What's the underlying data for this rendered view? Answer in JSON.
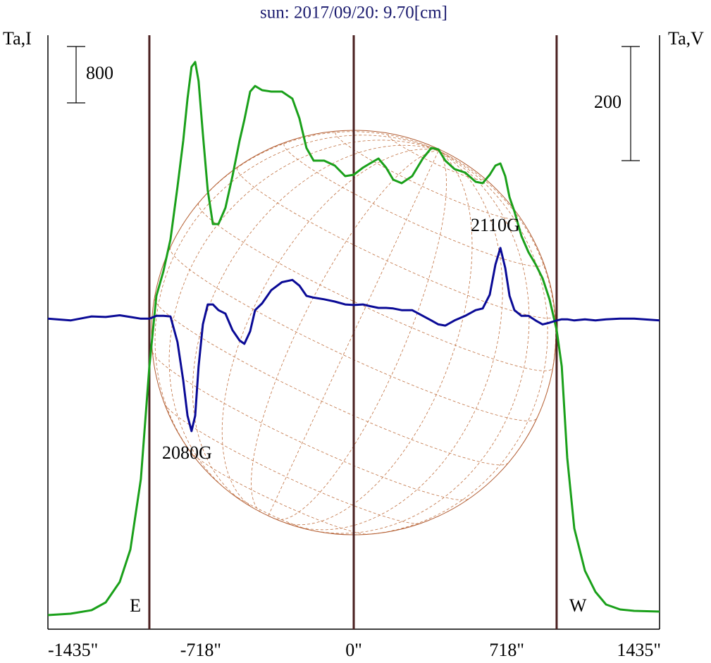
{
  "chart_data": {
    "type": "line",
    "title": "sun: 2017/09/20: 9.70[cm]",
    "y_label": "Ta,I",
    "y2_label": "Ta,V",
    "xlim": [
      -1435,
      1435
    ],
    "xticks": [
      {
        "value": -1435,
        "label": "-1435\""
      },
      {
        "value": -718,
        "label": "-718\""
      },
      {
        "value": 0,
        "label": "0\""
      },
      {
        "value": 718,
        "label": "718\""
      },
      {
        "value": 1435,
        "label": "1435\""
      }
    ],
    "ylim": [
      0,
      8400
    ],
    "y2lim": [
      -543,
      494
    ],
    "scale_bars": [
      {
        "value": 800,
        "axis": "y"
      },
      {
        "value": 200,
        "axis": "y2"
      }
    ],
    "markers": [
      {
        "x": -959,
        "label": "E"
      },
      {
        "x": 0
      },
      {
        "x": 952,
        "label": "W"
      }
    ],
    "annotations": [
      "2080G",
      "2110G"
    ],
    "x": [
      -1435,
      -1329,
      -1230,
      -1164,
      -1098,
      -1048,
      -999,
      -959,
      -926,
      -893,
      -860,
      -827,
      -800,
      -780,
      -761,
      -744,
      -728,
      -708,
      -685,
      -661,
      -635,
      -602,
      -569,
      -536,
      -513,
      -486,
      -463,
      -430,
      -387,
      -337,
      -288,
      -255,
      -222,
      -188,
      -139,
      -89,
      -40,
      0,
      43,
      76,
      116,
      152,
      185,
      225,
      274,
      324,
      364,
      397,
      430,
      473,
      523,
      572,
      605,
      638,
      665,
      688,
      711,
      731,
      754,
      787,
      820,
      853,
      886,
      919,
      952,
      976,
      1002,
      1035,
      1085,
      1134,
      1184,
      1250,
      1316,
      1435
    ],
    "series": [
      {
        "name": "I",
        "color": "#1aa01a",
        "axis": "y",
        "values": [
          200,
          220,
          270,
          380,
          670,
          1130,
          2130,
          3730,
          4730,
          5080,
          5530,
          6280,
          6930,
          7530,
          7980,
          8050,
          7780,
          7030,
          6230,
          5750,
          5750,
          5980,
          6430,
          6930,
          7230,
          7630,
          7710,
          7650,
          7630,
          7630,
          7530,
          7250,
          6830,
          6650,
          6650,
          6580,
          6430,
          6450,
          6550,
          6610,
          6680,
          6550,
          6380,
          6330,
          6430,
          6680,
          6830,
          6810,
          6650,
          6530,
          6480,
          6350,
          6330,
          6450,
          6580,
          6610,
          6430,
          6130,
          5930,
          5580,
          5350,
          5180,
          4980,
          4680,
          4250,
          3730,
          2430,
          1430,
          830,
          530,
          350,
          280,
          260,
          250
        ]
      },
      {
        "name": "V",
        "color": "#0a0a96",
        "axis": "y2",
        "values": [
          1,
          -2,
          5,
          4,
          7,
          4,
          1,
          1,
          6,
          6,
          5,
          -40,
          -107,
          -169,
          -196,
          -169,
          -83,
          -9,
          26,
          26,
          16,
          10,
          -19,
          -37,
          -43,
          -21,
          16,
          28,
          51,
          65,
          69,
          59,
          41,
          38,
          35,
          31,
          26,
          25,
          26,
          23,
          20,
          20,
          19,
          16,
          16,
          6,
          -2,
          -9,
          -11,
          -2,
          6,
          16,
          19,
          43,
          96,
          125,
          90,
          41,
          16,
          6,
          6,
          -2,
          -9,
          -6,
          -2,
          0,
          0,
          -2,
          0,
          -2,
          0,
          1,
          1,
          -2
        ]
      }
    ]
  }
}
